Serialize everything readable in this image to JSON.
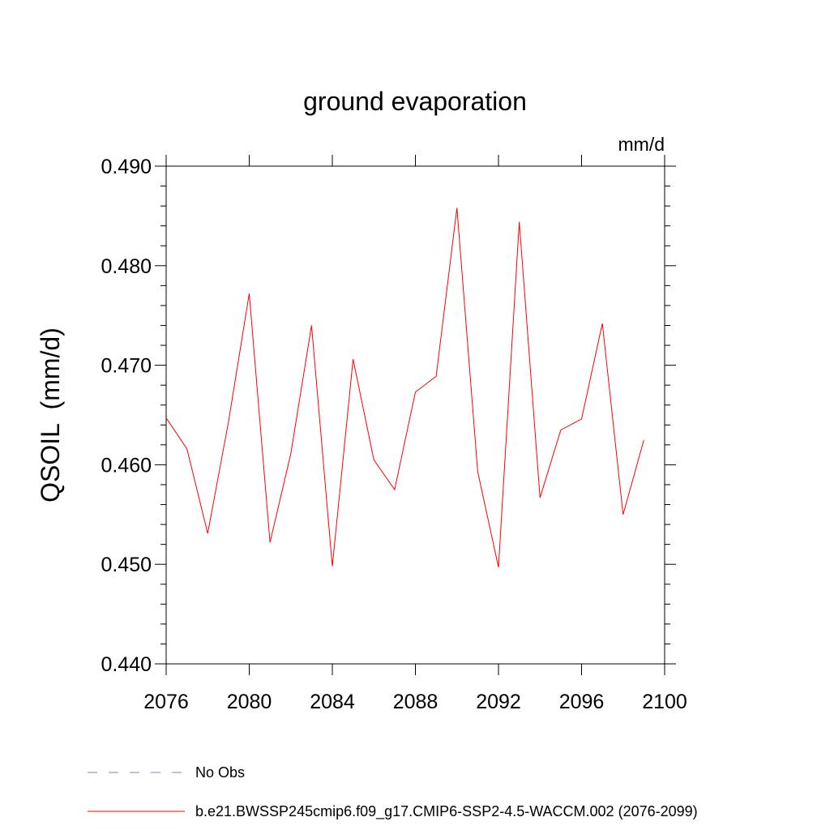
{
  "chart_data": {
    "type": "line",
    "title": "ground evaporation",
    "units": "mm/d",
    "ylabel": "QSOIL  (mm/d)",
    "xlabel": "",
    "xlim": [
      2076,
      2100
    ],
    "ylim": [
      0.44,
      0.49
    ],
    "x_ticks": [
      2076,
      2080,
      2084,
      2088,
      2092,
      2096,
      2100
    ],
    "x_tick_labels": [
      "2076",
      "2080",
      "2084",
      "2088",
      "2092",
      "2096",
      "2100"
    ],
    "y_ticks": [
      0.44,
      0.45,
      0.46,
      0.47,
      0.48,
      0.49
    ],
    "y_tick_labels": [
      "0.440",
      "0.450",
      "0.460",
      "0.470",
      "0.480",
      "0.490"
    ],
    "series": [
      {
        "name": "b.e21.BWSSP245cmip6.f09_g17.CMIP6-SSP2-4.5-WACCM.002 (2076-2099)",
        "color": "#ff0000",
        "x": [
          2076,
          2077,
          2078,
          2079,
          2080,
          2081,
          2082,
          2083,
          2084,
          2085,
          2086,
          2087,
          2088,
          2089,
          2090,
          2091,
          2092,
          2093,
          2094,
          2095,
          2096,
          2097,
          2098,
          2099
        ],
        "values": [
          0.4647,
          0.4616,
          0.4531,
          0.4643,
          0.4772,
          0.4522,
          0.4611,
          0.474,
          0.4498,
          0.4706,
          0.4605,
          0.4575,
          0.4673,
          0.4689,
          0.4858,
          0.4593,
          0.4497,
          0.4844,
          0.4567,
          0.4635,
          0.4646,
          0.4742,
          0.455,
          0.4625
        ]
      }
    ],
    "legend": [
      {
        "label": "No Obs",
        "color": "#7f7fbf",
        "style": "dashed"
      },
      {
        "label": "b.e21.BWSSP245cmip6.f09_g17.CMIP6-SSP2-4.5-WACCM.002 (2076-2099)",
        "color": "#ff0000",
        "style": "solid"
      }
    ]
  }
}
